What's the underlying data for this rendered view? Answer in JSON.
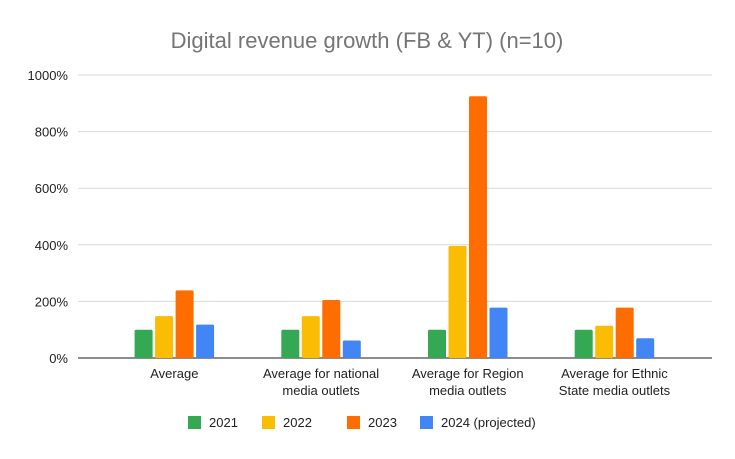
{
  "chart_data": {
    "type": "bar",
    "title": "Digital revenue growth (FB & YT) (n=10)",
    "xlabel": "",
    "ylabel": "",
    "ylim": [
      0,
      1000
    ],
    "yticks": [
      0,
      200,
      400,
      600,
      800,
      1000
    ],
    "ytick_labels": [
      "0%",
      "200%",
      "400%",
      "600%",
      "800%",
      "1000%"
    ],
    "grid": true,
    "legend_position": "bottom",
    "categories": [
      [
        "Average"
      ],
      [
        "Average for national",
        "media outlets"
      ],
      [
        "Average for Region",
        "media outlets"
      ],
      [
        "Average for Ethnic",
        "State media outlets"
      ]
    ],
    "series": [
      {
        "name": "2021",
        "color": "#34a853",
        "values": [
          100,
          100,
          100,
          100
        ]
      },
      {
        "name": "2022",
        "color": "#fbbc04",
        "values": [
          148,
          148,
          396,
          114
        ]
      },
      {
        "name": "2023",
        "color": "#ff6d01",
        "values": [
          239,
          205,
          925,
          178
        ]
      },
      {
        "name": "2024 (projected)",
        "color": "#4285f4",
        "values": [
          118,
          62,
          178,
          70
        ]
      }
    ]
  }
}
